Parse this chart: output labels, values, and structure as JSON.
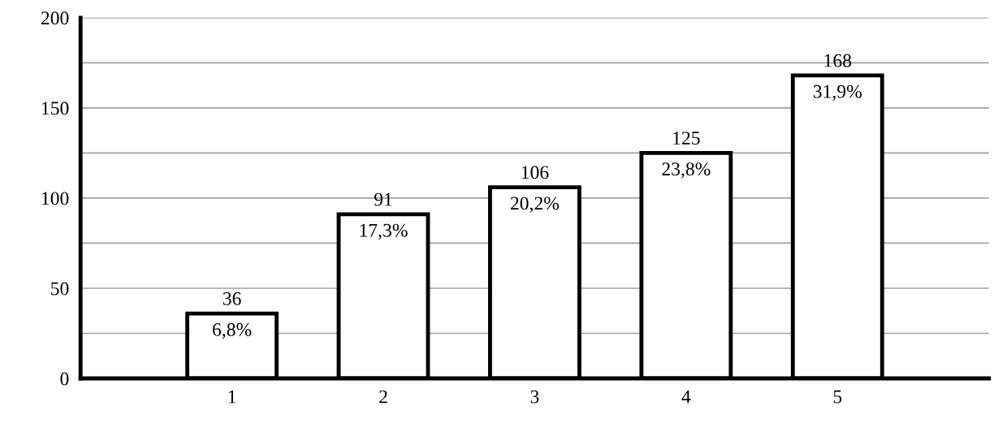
{
  "chart_data": {
    "type": "bar",
    "categories": [
      "1",
      "2",
      "3",
      "4",
      "5"
    ],
    "values": [
      36,
      91,
      106,
      125,
      168
    ],
    "color": "#000000",
    "data_labels": true,
    "annotations": [
      {
        "text": "6,8%",
        "x": "1",
        "y": 36
      },
      {
        "text": "17,3%",
        "x": "2",
        "y": 91
      },
      {
        "text": "20,2%",
        "x": "3",
        "y": 106
      },
      {
        "text": "23,8%",
        "x": "4",
        "y": 125
      },
      {
        "text": "31,9%",
        "x": "5",
        "y": 168
      }
    ],
    "ylim": [
      0,
      200
    ],
    "yticks": [
      0,
      {
        "value": 25,
        "label": null
      },
      50,
      {
        "value": 75,
        "label": null
      },
      100,
      {
        "value": 125,
        "label": null
      },
      150,
      {
        "value": 175,
        "label": null
      },
      200
    ],
    "grid": "y",
    "legend": false
  }
}
